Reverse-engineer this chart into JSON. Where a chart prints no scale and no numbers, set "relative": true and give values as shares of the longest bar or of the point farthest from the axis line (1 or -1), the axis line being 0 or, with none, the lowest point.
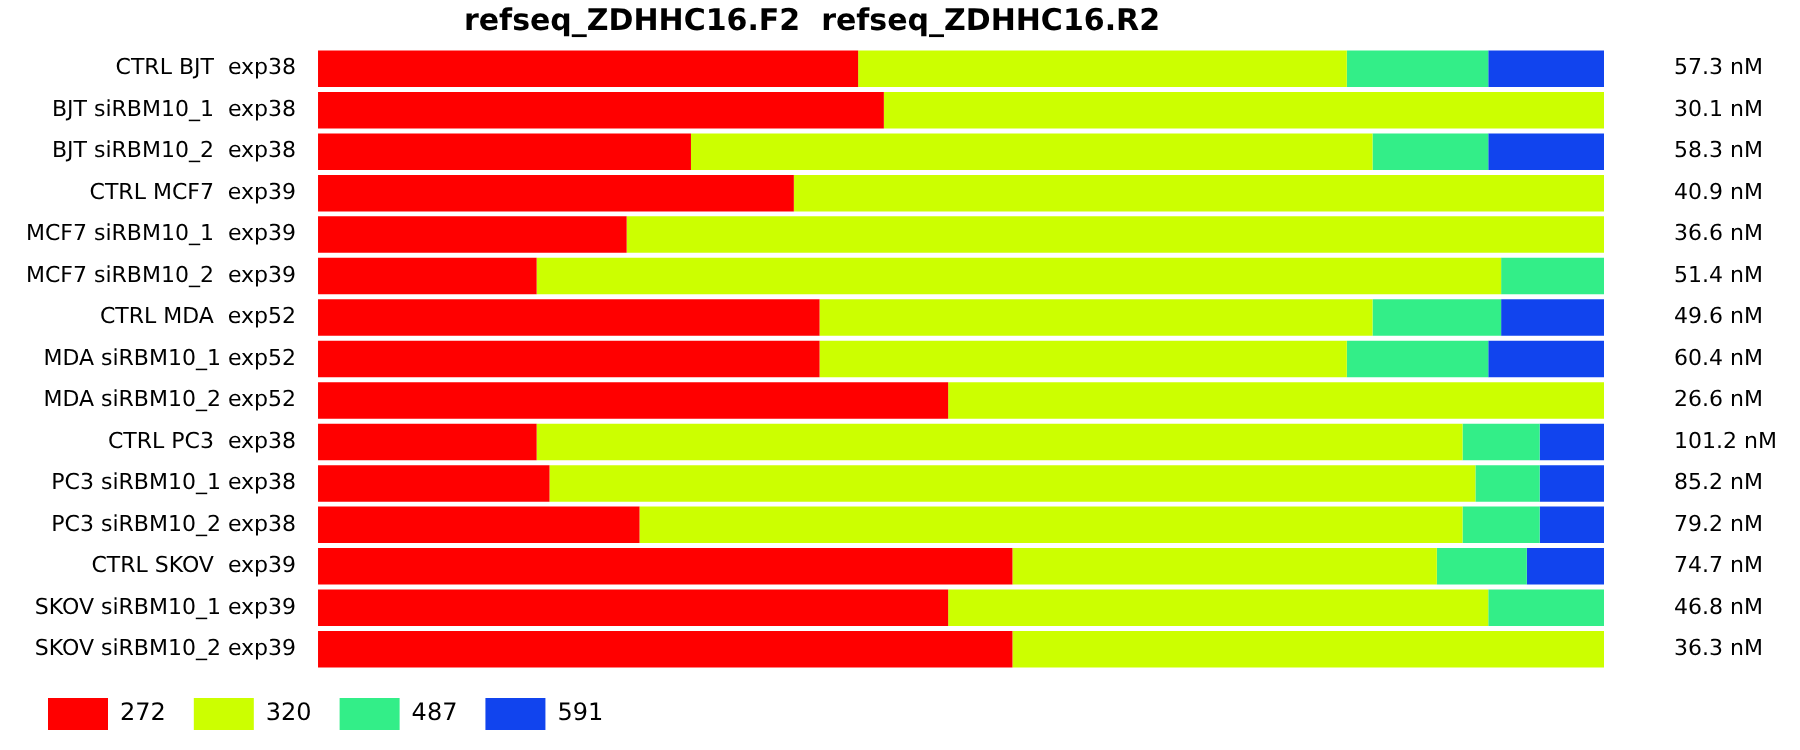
{
  "chart_data": {
    "type": "bar",
    "orientation": "horizontal",
    "stacked": true,
    "relative": true,
    "title": "refseq_ZDHHC16.F2  refseq_ZDHHC16.R2",
    "legend": "bottom left",
    "categories": [
      "CTRL BJT  exp38",
      "BJT siRBM10_1  exp38",
      "BJT siRBM10_2  exp38",
      "CTRL MCF7  exp39",
      "MCF7 siRBM10_1  exp39",
      "MCF7 siRBM10_2  exp39",
      "CTRL MDA  exp52",
      "MDA siRBM10_1 exp52",
      "MDA siRBM10_2 exp52",
      "CTRL PC3  exp38",
      "PC3 siRBM10_1 exp38",
      "PC3 siRBM10_2 exp38",
      "CTRL SKOV  exp39",
      "SKOV siRBM10_1 exp39",
      "SKOV siRBM10_2 exp39"
    ],
    "series": [
      {
        "name": "272",
        "color": "#ff0000",
        "values": [
          0.42,
          0.44,
          0.29,
          0.37,
          0.24,
          0.17,
          0.39,
          0.39,
          0.49,
          0.17,
          0.18,
          0.25,
          0.54,
          0.49,
          0.54
        ]
      },
      {
        "name": "320",
        "color": "#ccff00",
        "values": [
          0.38,
          0.56,
          0.53,
          0.63,
          0.76,
          0.75,
          0.43,
          0.41,
          0.51,
          0.72,
          0.72,
          0.64,
          0.33,
          0.42,
          0.46
        ]
      },
      {
        "name": "487",
        "color": "#33ee88",
        "values": [
          0.11,
          null,
          0.09,
          null,
          null,
          0.08,
          0.1,
          0.11,
          null,
          0.06,
          0.05,
          0.06,
          0.07,
          0.09,
          null
        ]
      },
      {
        "name": "591",
        "color": "#1144ee",
        "values": [
          0.09,
          null,
          0.09,
          null,
          null,
          null,
          0.08,
          0.09,
          null,
          0.05,
          0.05,
          0.05,
          0.06,
          null,
          null
        ]
      }
    ],
    "annotations": [
      "57.3 nM",
      "30.1 nM",
      "58.3 nM",
      "40.9 nM",
      "36.6 nM",
      "51.4 nM",
      "49.6 nM",
      "60.4 nM",
      "26.6 nM",
      "101.2 nM",
      "85.2 nM",
      "79.2 nM",
      "74.7 nM",
      "46.8 nM",
      "36.3 nM"
    ]
  }
}
